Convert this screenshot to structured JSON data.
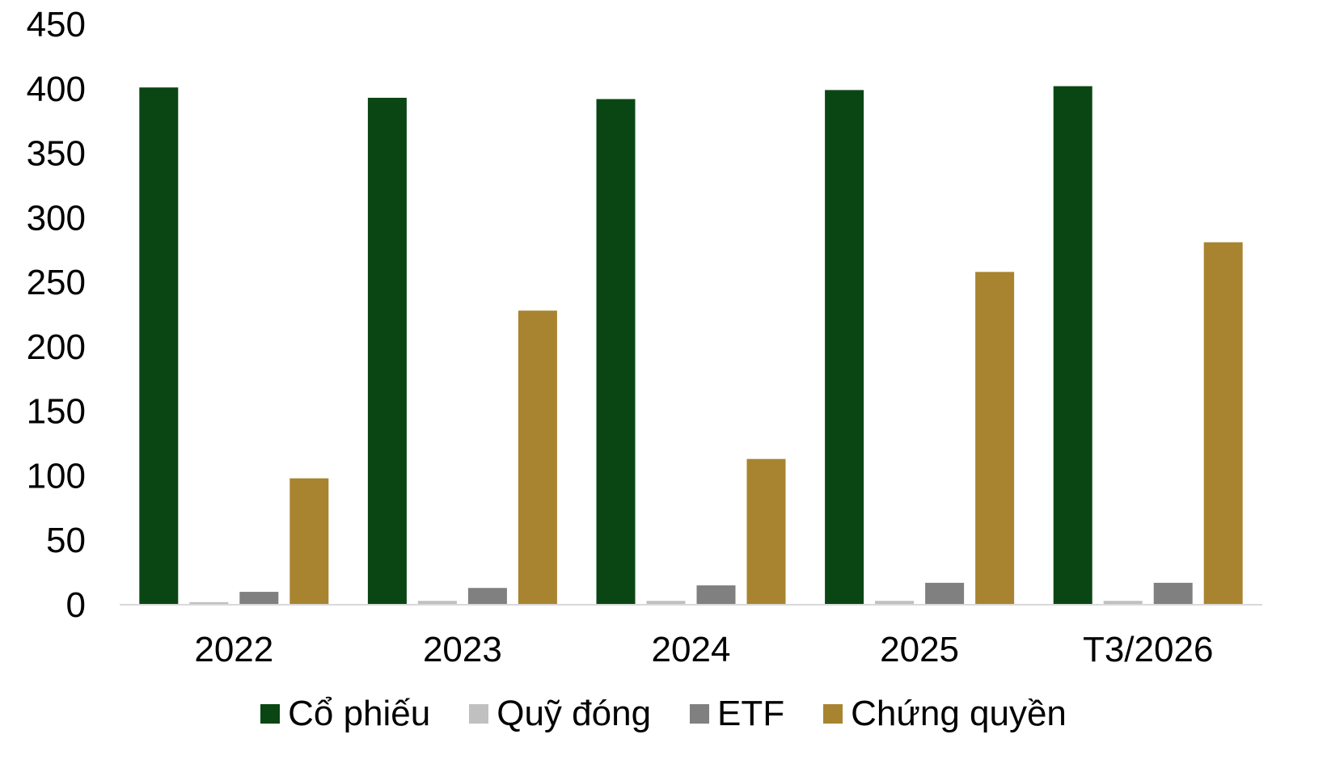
{
  "chart_data": {
    "type": "bar",
    "categories": [
      "2022",
      "2023",
      "2024",
      "2025",
      "T3/2026"
    ],
    "series": [
      {
        "name": "Cổ phiếu",
        "color": "#0a4614",
        "values": [
          401,
          393,
          392,
          399,
          402
        ]
      },
      {
        "name": "Quỹ đóng",
        "color": "#c0c0c0",
        "values": [
          2,
          3,
          3,
          3,
          3
        ]
      },
      {
        "name": "ETF",
        "color": "#808080",
        "values": [
          10,
          13,
          15,
          17,
          17
        ]
      },
      {
        "name": "Chứng quyền",
        "color": "#a88430",
        "values": [
          98,
          228,
          113,
          258,
          281
        ]
      }
    ],
    "ylim": [
      0,
      450
    ],
    "yticks": [
      "0",
      "50",
      "100",
      "150",
      "200",
      "250",
      "300",
      "350",
      "400",
      "450"
    ],
    "grid": false,
    "legend_position": "bottom"
  }
}
